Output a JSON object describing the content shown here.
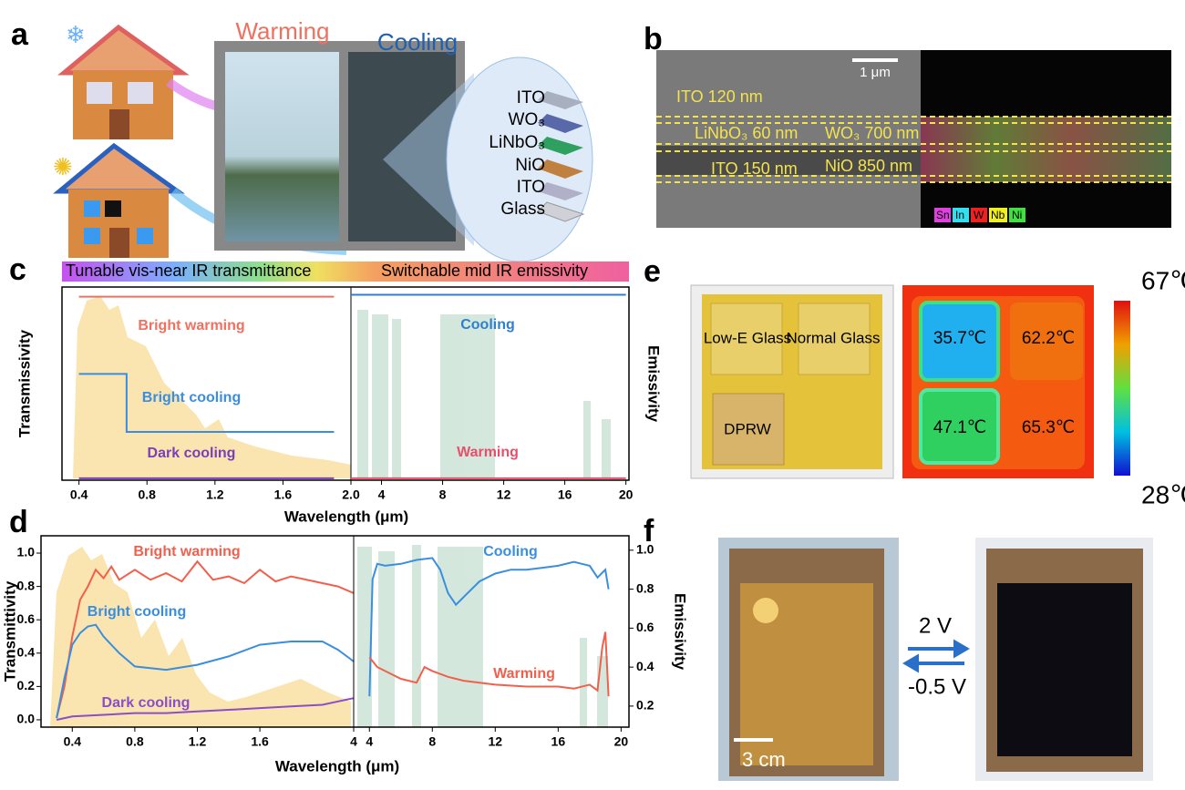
{
  "panel_labels": [
    "a",
    "b",
    "c",
    "d",
    "e",
    "f"
  ],
  "panel_a": {
    "warming": "Warming",
    "cooling": "Cooling",
    "layers": [
      "ITO",
      "WO₃",
      "LiNbO₃",
      "NiO",
      "ITO",
      "Glass"
    ]
  },
  "panel_b": {
    "scale_bar": "1 μm",
    "annotations": [
      "ITO 120 nm",
      "LiNbO₃ 60 nm",
      "WO₃ 700 nm",
      "ITO 150 nm",
      "NiO 850 nm"
    ],
    "elements": [
      "Sn",
      "In",
      "W",
      "Nb",
      "Ni"
    ]
  },
  "chart_data": [
    {
      "type": "line",
      "header": [
        "Tunable vis-near IR transmittance",
        "Switchable mid IR emissivity"
      ],
      "ylabel": "Transmissivity",
      "y2label": "Emissivity",
      "xlabel": "Wavelength (μm)",
      "segments": [
        {
          "xlim": [
            0.3,
            2.0
          ],
          "xticks": [
            0.4,
            0.8,
            1.2,
            1.6
          ],
          "ylim": [
            0,
            1
          ],
          "series": [
            {
              "name": "Bright warming",
              "color": "#f07060",
              "x": [
                0.4,
                1.9
              ],
              "values": [
                0.95,
                0.95
              ]
            },
            {
              "name": "Bright cooling",
              "color": "#3a8ee0",
              "x": [
                0.4,
                0.68,
                0.68,
                1.9
              ],
              "values": [
                0.55,
                0.55,
                0.25,
                0.25
              ]
            },
            {
              "name": "Dark cooling",
              "color": "#7a3fb8",
              "x": [
                0.4,
                1.9
              ],
              "values": [
                0.01,
                0.01
              ]
            }
          ]
        },
        {
          "xlim": [
            2.0,
            20.2
          ],
          "xticks": [
            {
              "value": 2.0,
              "label": "2.0"
            },
            4,
            8,
            12,
            16,
            20
          ],
          "ylim": [
            0,
            1
          ],
          "series": [
            {
              "name": "Cooling",
              "color": "#2f7fcf",
              "x": [
                2.0,
                20
              ],
              "values": [
                0.96,
                0.96
              ]
            },
            {
              "name": "Warming",
              "color": "#e8506a",
              "x": [
                2.0,
                20
              ],
              "values": [
                0.01,
                0.01
              ]
            }
          ]
        }
      ]
    },
    {
      "type": "line",
      "ylabel": "Transmittivity",
      "y2label": "Emissivity",
      "xlabel": "Wavelength (μm)",
      "ylim": [
        -0.044,
        1.104
      ],
      "yticks": [
        {
          "value": 0,
          "label": "0.0"
        },
        0.2,
        0.4,
        0.6,
        0.8,
        {
          "value": 1,
          "label": "1.0"
        }
      ],
      "y2lim": [
        0.092,
        1.074
      ],
      "y2ticks": [
        0.2,
        0.4,
        0.6,
        0.8,
        {
          "value": 1,
          "label": "1.0"
        }
      ],
      "segments": [
        {
          "xlim": [
            0.2,
            4
          ],
          "xbreak": 2.0,
          "xticks": [
            0.4,
            0.8,
            1.2,
            1.6,
            4
          ],
          "series": [
            {
              "name": "Bright warming",
              "color": "#f0604c",
              "x": [
                0.3,
                0.35,
                0.4,
                0.45,
                0.5,
                0.55,
                0.6,
                0.65,
                0.7,
                0.8,
                0.9,
                1.0,
                1.1,
                1.2,
                1.3,
                1.4,
                1.5,
                1.6,
                1.7,
                1.8,
                2.0,
                3.0,
                4.0
              ],
              "values": [
                0.01,
                0.2,
                0.5,
                0.72,
                0.8,
                0.9,
                0.85,
                0.92,
                0.84,
                0.9,
                0.84,
                0.88,
                0.83,
                0.95,
                0.84,
                0.86,
                0.82,
                0.9,
                0.83,
                0.86,
                0.82,
                0.8,
                0.76
              ]
            },
            {
              "name": "Bright cooling",
              "color": "#3a8ee0",
              "x": [
                0.3,
                0.35,
                0.4,
                0.45,
                0.5,
                0.55,
                0.6,
                0.7,
                0.8,
                1.0,
                1.2,
                1.4,
                1.6,
                1.8,
                2.0,
                3.0,
                4.0
              ],
              "values": [
                0.01,
                0.25,
                0.45,
                0.52,
                0.56,
                0.57,
                0.5,
                0.4,
                0.32,
                0.3,
                0.33,
                0.38,
                0.45,
                0.47,
                0.47,
                0.42,
                0.35
              ]
            },
            {
              "name": "Dark cooling",
              "color": "#8a4fc8",
              "x": [
                0.3,
                0.4,
                0.6,
                0.8,
                1.0,
                1.2,
                1.4,
                1.6,
                1.8,
                2.0,
                3.0,
                4.0
              ],
              "values": [
                0.0,
                0.02,
                0.03,
                0.04,
                0.04,
                0.05,
                0.06,
                0.07,
                0.08,
                0.09,
                0.11,
                0.13
              ]
            }
          ]
        },
        {
          "xlim": [
            3,
            20.5
          ],
          "xticks": [
            4,
            8,
            12,
            16,
            20
          ],
          "series": [
            {
              "name": "Cooling",
              "color": "#3a8ee0",
              "axis": "y2",
              "x": [
                4,
                4.2,
                4.5,
                5,
                6,
                7,
                8,
                8.5,
                9,
                9.5,
                10,
                11,
                12,
                13,
                14,
                15,
                16,
                17,
                18,
                18.5,
                19,
                19.2
              ],
              "values": [
                0.25,
                0.85,
                0.93,
                0.92,
                0.93,
                0.95,
                0.96,
                0.9,
                0.78,
                0.72,
                0.76,
                0.84,
                0.88,
                0.9,
                0.9,
                0.91,
                0.92,
                0.94,
                0.92,
                0.86,
                0.9,
                0.8
              ]
            },
            {
              "name": "Warming",
              "color": "#f0604c",
              "axis": "y2",
              "x": [
                4,
                4.5,
                5,
                6,
                7,
                7.5,
                8,
                9,
                10,
                12,
                14,
                16,
                17,
                18,
                18.5,
                18.8,
                19,
                19.2
              ],
              "values": [
                0.45,
                0.4,
                0.38,
                0.34,
                0.32,
                0.4,
                0.38,
                0.35,
                0.33,
                0.31,
                0.3,
                0.3,
                0.29,
                0.31,
                0.28,
                0.5,
                0.58,
                0.25
              ]
            }
          ]
        }
      ]
    }
  ],
  "panel_e": {
    "samples": [
      "Low-E Glass",
      "Normal Glass",
      "DPRW"
    ],
    "temperatures": [
      "35.7℃",
      "62.2℃",
      "47.1℃",
      "65.3℃"
    ],
    "colorbar": [
      "67℃",
      "28℃"
    ]
  },
  "panel_f": {
    "scale_bar": "3 cm",
    "voltages": [
      "2 V",
      "-0.5 V"
    ]
  }
}
